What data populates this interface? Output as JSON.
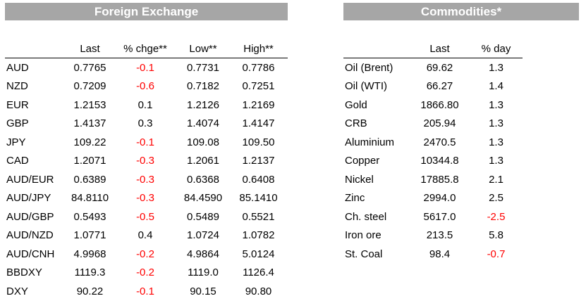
{
  "fx": {
    "title": "Foreign Exchange",
    "headers": [
      "",
      "Last",
      "% chge**",
      "Low**",
      "High**"
    ],
    "rows": [
      {
        "name": "AUD",
        "last": "0.7765",
        "chg": "-0.1",
        "low": "0.7731",
        "high": "0.7786"
      },
      {
        "name": "NZD",
        "last": "0.7209",
        "chg": "-0.6",
        "low": "0.7182",
        "high": "0.7251"
      },
      {
        "name": "EUR",
        "last": "1.2153",
        "chg": "0.1",
        "low": "1.2126",
        "high": "1.2169"
      },
      {
        "name": "GBP",
        "last": "1.4137",
        "chg": "0.3",
        "low": "1.4074",
        "high": "1.4147"
      },
      {
        "name": "JPY",
        "last": "109.22",
        "chg": "-0.1",
        "low": "109.08",
        "high": "109.50"
      },
      {
        "name": "CAD",
        "last": "1.2071",
        "chg": "-0.3",
        "low": "1.2061",
        "high": "1.2137"
      },
      {
        "name": "AUD/EUR",
        "last": "0.6389",
        "chg": "-0.3",
        "low": "0.6368",
        "high": "0.6408"
      },
      {
        "name": "AUD/JPY",
        "last": "84.8110",
        "chg": "-0.3",
        "low": "84.4590",
        "high": "85.1410"
      },
      {
        "name": "AUD/GBP",
        "last": "0.5493",
        "chg": "-0.5",
        "low": "0.5489",
        "high": "0.5521"
      },
      {
        "name": "AUD/NZD",
        "last": "1.0771",
        "chg": "0.4",
        "low": "1.0724",
        "high": "1.0782"
      },
      {
        "name": "AUD/CNH",
        "last": "4.9968",
        "chg": "-0.2",
        "low": "4.9864",
        "high": "5.0124"
      },
      {
        "name": "BBDXY",
        "last": "1119.3",
        "chg": "-0.2",
        "low": "1119.0",
        "high": "1126.4"
      },
      {
        "name": "DXY",
        "last": "90.22",
        "chg": "-0.1",
        "low": "90.15",
        "high": "90.80"
      }
    ]
  },
  "commodities": {
    "title": "Commodities*",
    "headers": [
      "",
      "Last",
      "% day"
    ],
    "rows": [
      {
        "name": "Oil (Brent)",
        "last": "69.62",
        "day": "1.3"
      },
      {
        "name": "Oil (WTI)",
        "last": "66.27",
        "day": "1.4"
      },
      {
        "name": "Gold",
        "last": "1866.80",
        "day": "1.3"
      },
      {
        "name": "CRB",
        "last": "205.94",
        "day": "1.3"
      },
      {
        "name": "Aluminium",
        "last": "2470.5",
        "day": "1.3"
      },
      {
        "name": "Copper",
        "last": "10344.8",
        "day": "1.3"
      },
      {
        "name": "Nickel",
        "last": "17885.8",
        "day": "2.1"
      },
      {
        "name": "Zinc",
        "last": "2994.0",
        "day": "2.5"
      },
      {
        "name": "Ch. steel",
        "last": "5617.0",
        "day": "-2.5"
      },
      {
        "name": "Iron ore",
        "last": "213.5",
        "day": "5.8"
      },
      {
        "name": "St. Coal",
        "last": "98.4",
        "day": "-0.7"
      }
    ]
  },
  "colors": {
    "title_bg": "#a6a6a6",
    "title_text": "#ffffff",
    "negative": "#ff0000"
  }
}
